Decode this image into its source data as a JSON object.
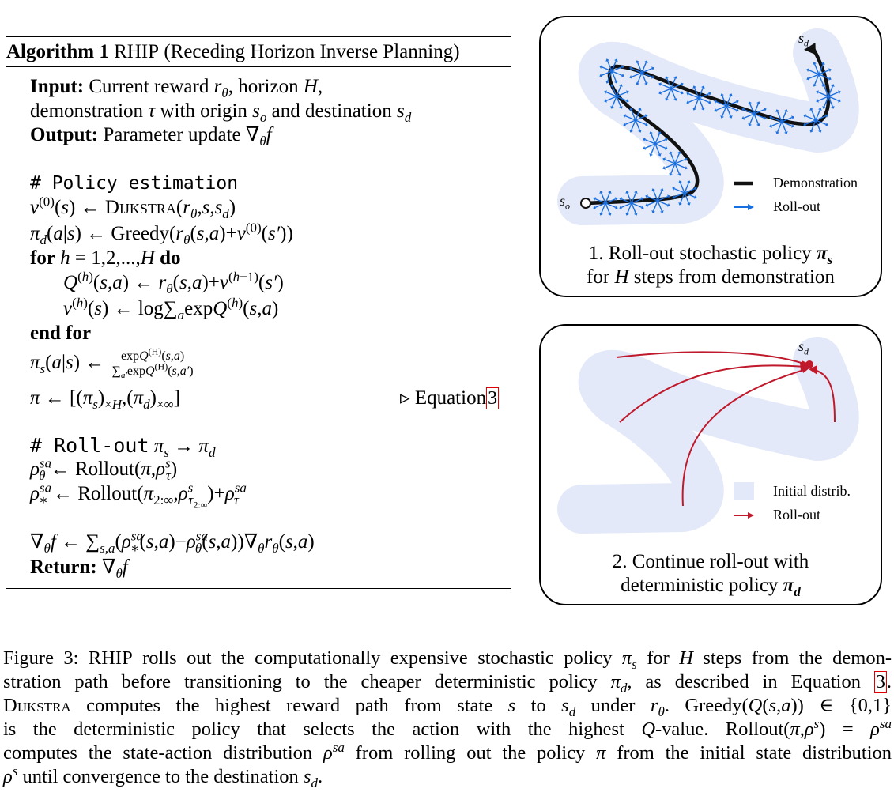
{
  "algorithm": {
    "label": "Algorithm 1",
    "name_sc": "RHIP",
    "title_paren": "(Receding Horizon Inverse Planning)",
    "input_label": "Input:",
    "input_line1": "Current reward rθ, horizon H,",
    "input_line2": "demonstration τ with origin sₒ and destination s_d",
    "output_label": "Output:",
    "output_text": "Parameter update ∇θf",
    "comment_policy": "# Policy estimation",
    "for_keyword": "for",
    "for_range": "h = 1,2,...,H",
    "do_keyword": "do",
    "end_for": "end for",
    "equation_ref_text": "Equation",
    "equation_ref_num": "3",
    "comment_rollout": "# Roll-out",
    "return_label": "Return:",
    "dijkstra": "Dijkstra",
    "greedy": "Greedy",
    "rollout": "Rollout",
    "log": "log",
    "exp": "exp"
  },
  "panel1": {
    "label_sd": "s_d",
    "label_so": "s_o",
    "legend_demo": "Demonstration",
    "legend_rollout": "Roll-out",
    "caption_line1": "1. Roll-out stochastic policy π_s",
    "caption_line2": "for H steps from demonstration",
    "colors": {
      "band": "#e3e9f8",
      "demo": "#111111",
      "arrow": "#1a6fe0"
    }
  },
  "panel2": {
    "label_sd": "s_d",
    "legend_initial": "Initial distrib.",
    "legend_rollout": "Roll-out",
    "caption_line1": "2. Continue roll-out with",
    "caption_line2": "deterministic policy π_d",
    "colors": {
      "band": "#e3e9f8",
      "arrow": "#c0192c"
    }
  },
  "caption": {
    "figure_label": "Figure 3:",
    "line1": "RHIP rolls out the computationally expensive stochastic policy π_s for H steps from the demon-",
    "line2": "stration path before transitioning to the cheaper deterministic policy π_d, as described in Equation 3.",
    "line3": "Dijkstra computes the highest reward path from state s to s_d under rθ. Greedy(Q(s,a)) ∈ {0,1}",
    "line4": "is the deterministic policy that selects the action with the highest Q-value. Rollout(π,ρ^s) = ρ^sa",
    "line5": "computes the state-action distribution ρ^sa from rolling out the policy π from the initial state distribution",
    "line6": "ρ^s until convergence to the destination s_d."
  }
}
